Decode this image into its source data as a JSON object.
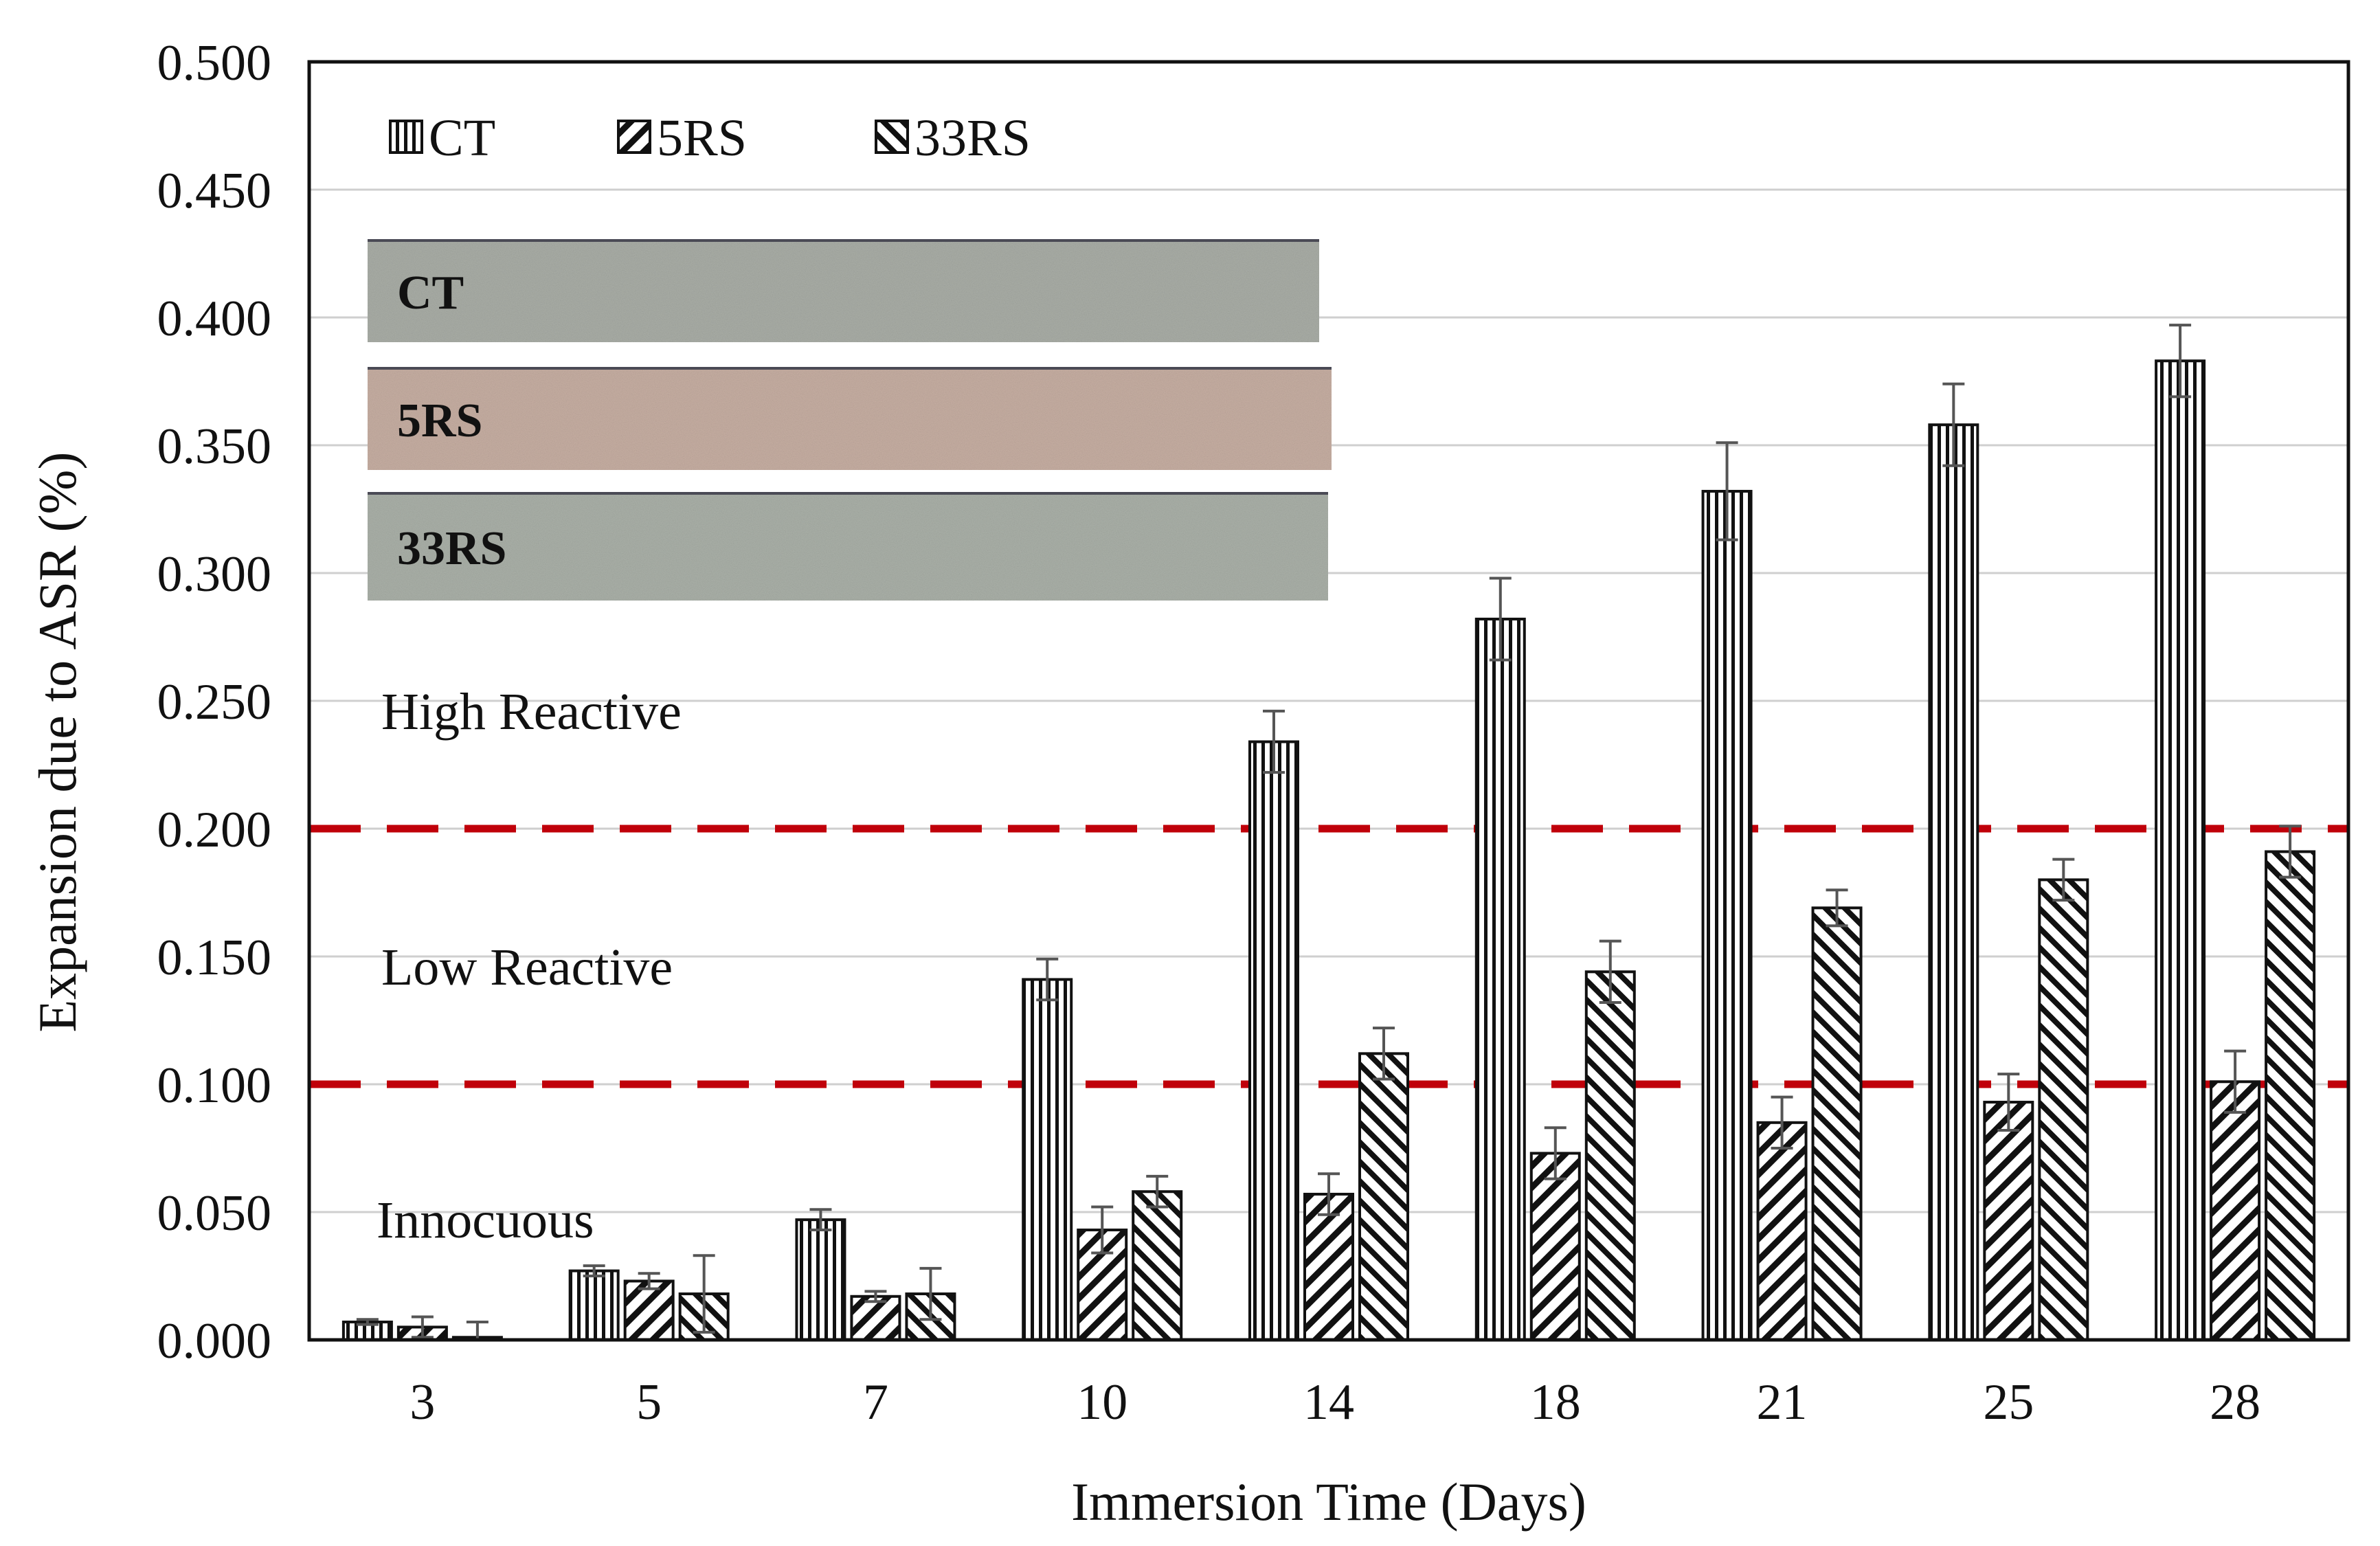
{
  "chart_data": {
    "type": "bar",
    "title": "",
    "xlabel": "Immersion Time (Days)",
    "ylabel": "Expansion due to ASR (%)",
    "ylim": [
      0,
      0.5
    ],
    "yticks": [
      "0.000",
      "0.050",
      "0.100",
      "0.150",
      "0.200",
      "0.250",
      "0.300",
      "0.350",
      "0.400",
      "0.450",
      "0.500"
    ],
    "grid": true,
    "legend_position": "top-left",
    "categories": [
      "3",
      "5",
      "7",
      "10",
      "14",
      "18",
      "21",
      "25",
      "28"
    ],
    "series": [
      {
        "name": "CT",
        "pattern": "vertical",
        "values": [
          0.007,
          0.027,
          0.047,
          0.141,
          0.234,
          0.282,
          0.332,
          0.358,
          0.383
        ],
        "errors": [
          0.001,
          0.002,
          0.004,
          0.008,
          0.012,
          0.016,
          0.019,
          0.016,
          0.014
        ]
      },
      {
        "name": "5RS",
        "pattern": "forward-diagonal",
        "values": [
          0.005,
          0.023,
          0.017,
          0.043,
          0.057,
          0.073,
          0.085,
          0.093,
          0.101
        ],
        "errors": [
          0.004,
          0.003,
          0.002,
          0.009,
          0.008,
          0.01,
          0.01,
          0.011,
          0.012
        ]
      },
      {
        "name": "33RS",
        "pattern": "backward-diagonal",
        "values": [
          0.001,
          0.018,
          0.018,
          0.058,
          0.112,
          0.144,
          0.169,
          0.18,
          0.191
        ],
        "errors": [
          0.006,
          0.015,
          0.01,
          0.006,
          0.01,
          0.012,
          0.007,
          0.008,
          0.01
        ]
      }
    ],
    "thresholds": [
      {
        "value": 0.1,
        "color": "#c0000a"
      },
      {
        "value": 0.2,
        "color": "#c0000a"
      }
    ],
    "zone_labels": [
      {
        "text": "Innocuous",
        "y": 0.047
      },
      {
        "text": "Low Reactive",
        "y": 0.146
      },
      {
        "text": "High Reactive",
        "y": 0.246
      }
    ],
    "inset_samples": [
      {
        "label": "CT",
        "color": "#a9ada6"
      },
      {
        "label": "5RS",
        "color": "#c6aea2"
      },
      {
        "label": "33RS",
        "color": "#aab0a8"
      }
    ]
  }
}
